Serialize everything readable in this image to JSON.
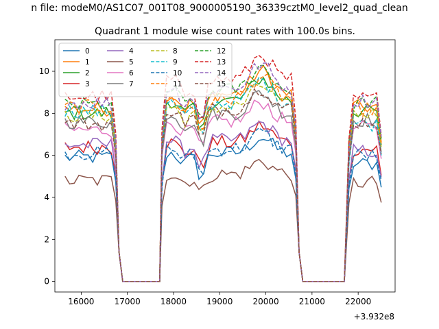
{
  "suptitle": "n file: modeM0/AS1C07_001T08_9000005190_36339cztM0_level2_quad_clean",
  "chart_data": {
    "type": "line",
    "title": "Quadrant 1 module wise count rates with 100.0s bins.",
    "xlabel": "",
    "ylabel": "",
    "x_offset_label": "+3.932e8",
    "xlim": [
      15430,
      22800
    ],
    "ylim": [
      -0.5,
      11.5
    ],
    "x_ticks": [
      16000,
      17000,
      18000,
      19000,
      20000,
      21000,
      22000
    ],
    "x_tick_labels": [
      "16000",
      "17000",
      "18000",
      "19000",
      "20000",
      "21000",
      "22000"
    ],
    "y_ticks": [
      0,
      2,
      4,
      6,
      8,
      10
    ],
    "y_tick_labels": [
      "0",
      "2",
      "4",
      "6",
      "8",
      "10"
    ],
    "grid": false,
    "legend_placement": "top-left",
    "segments": [
      {
        "x_start": 15650,
        "x_end": 16750,
        "gap_after": [
          16750,
          17750
        ]
      },
      {
        "x_start": 17750,
        "x_end": 20650,
        "gap_after": [
          20650,
          21800
        ]
      },
      {
        "x_start": 21800,
        "x_end": 22500
      }
    ],
    "series": [
      {
        "name": "0",
        "color": "#1f77b4",
        "dash": "solid",
        "segment_levels": [
          5.9,
          6.1,
          5.6
        ]
      },
      {
        "name": "1",
        "color": "#ff7f0e",
        "dash": "solid",
        "segment_levels": [
          8.2,
          8.9,
          8.3
        ]
      },
      {
        "name": "2",
        "color": "#2ca02c",
        "dash": "solid",
        "segment_levels": [
          8.0,
          8.6,
          8.1
        ]
      },
      {
        "name": "3",
        "color": "#d62728",
        "dash": "solid",
        "segment_levels": [
          6.4,
          6.6,
          6.3
        ]
      },
      {
        "name": "4",
        "color": "#9467bd",
        "dash": "solid",
        "segment_levels": [
          6.5,
          6.7,
          6.2
        ]
      },
      {
        "name": "5",
        "color": "#8c564b",
        "dash": "solid",
        "segment_levels": [
          4.8,
          5.1,
          4.7
        ]
      },
      {
        "name": "6",
        "color": "#e377c2",
        "dash": "solid",
        "segment_levels": [
          7.2,
          7.6,
          7.3
        ]
      },
      {
        "name": "7",
        "color": "#7f7f7f",
        "dash": "solid",
        "segment_levels": [
          7.6,
          8.0,
          7.7
        ]
      },
      {
        "name": "8",
        "color": "#bcbd22",
        "dash": "dashed",
        "segment_levels": [
          7.9,
          8.3,
          8.0
        ]
      },
      {
        "name": "9",
        "color": "#17becf",
        "dash": "dashed",
        "segment_levels": [
          8.1,
          8.5,
          7.5
        ]
      },
      {
        "name": "10",
        "color": "#1f77b4",
        "dash": "dashed",
        "segment_levels": [
          6.1,
          6.3,
          6.0
        ]
      },
      {
        "name": "11",
        "color": "#ff7f0e",
        "dash": "dashed",
        "segment_levels": [
          8.3,
          8.7,
          8.2
        ]
      },
      {
        "name": "12",
        "color": "#2ca02c",
        "dash": "dashed",
        "segment_levels": [
          8.4,
          9.1,
          8.5
        ]
      },
      {
        "name": "13",
        "color": "#d62728",
        "dash": "dashed",
        "segment_levels": [
          8.8,
          9.6,
          8.7
        ]
      },
      {
        "name": "14",
        "color": "#9467bd",
        "dash": "dashed",
        "segment_levels": [
          8.5,
          9.2,
          8.6
        ]
      },
      {
        "name": "15",
        "color": "#8c564b",
        "dash": "dashed",
        "segment_levels": [
          7.5,
          8.2,
          7.6
        ]
      }
    ]
  }
}
